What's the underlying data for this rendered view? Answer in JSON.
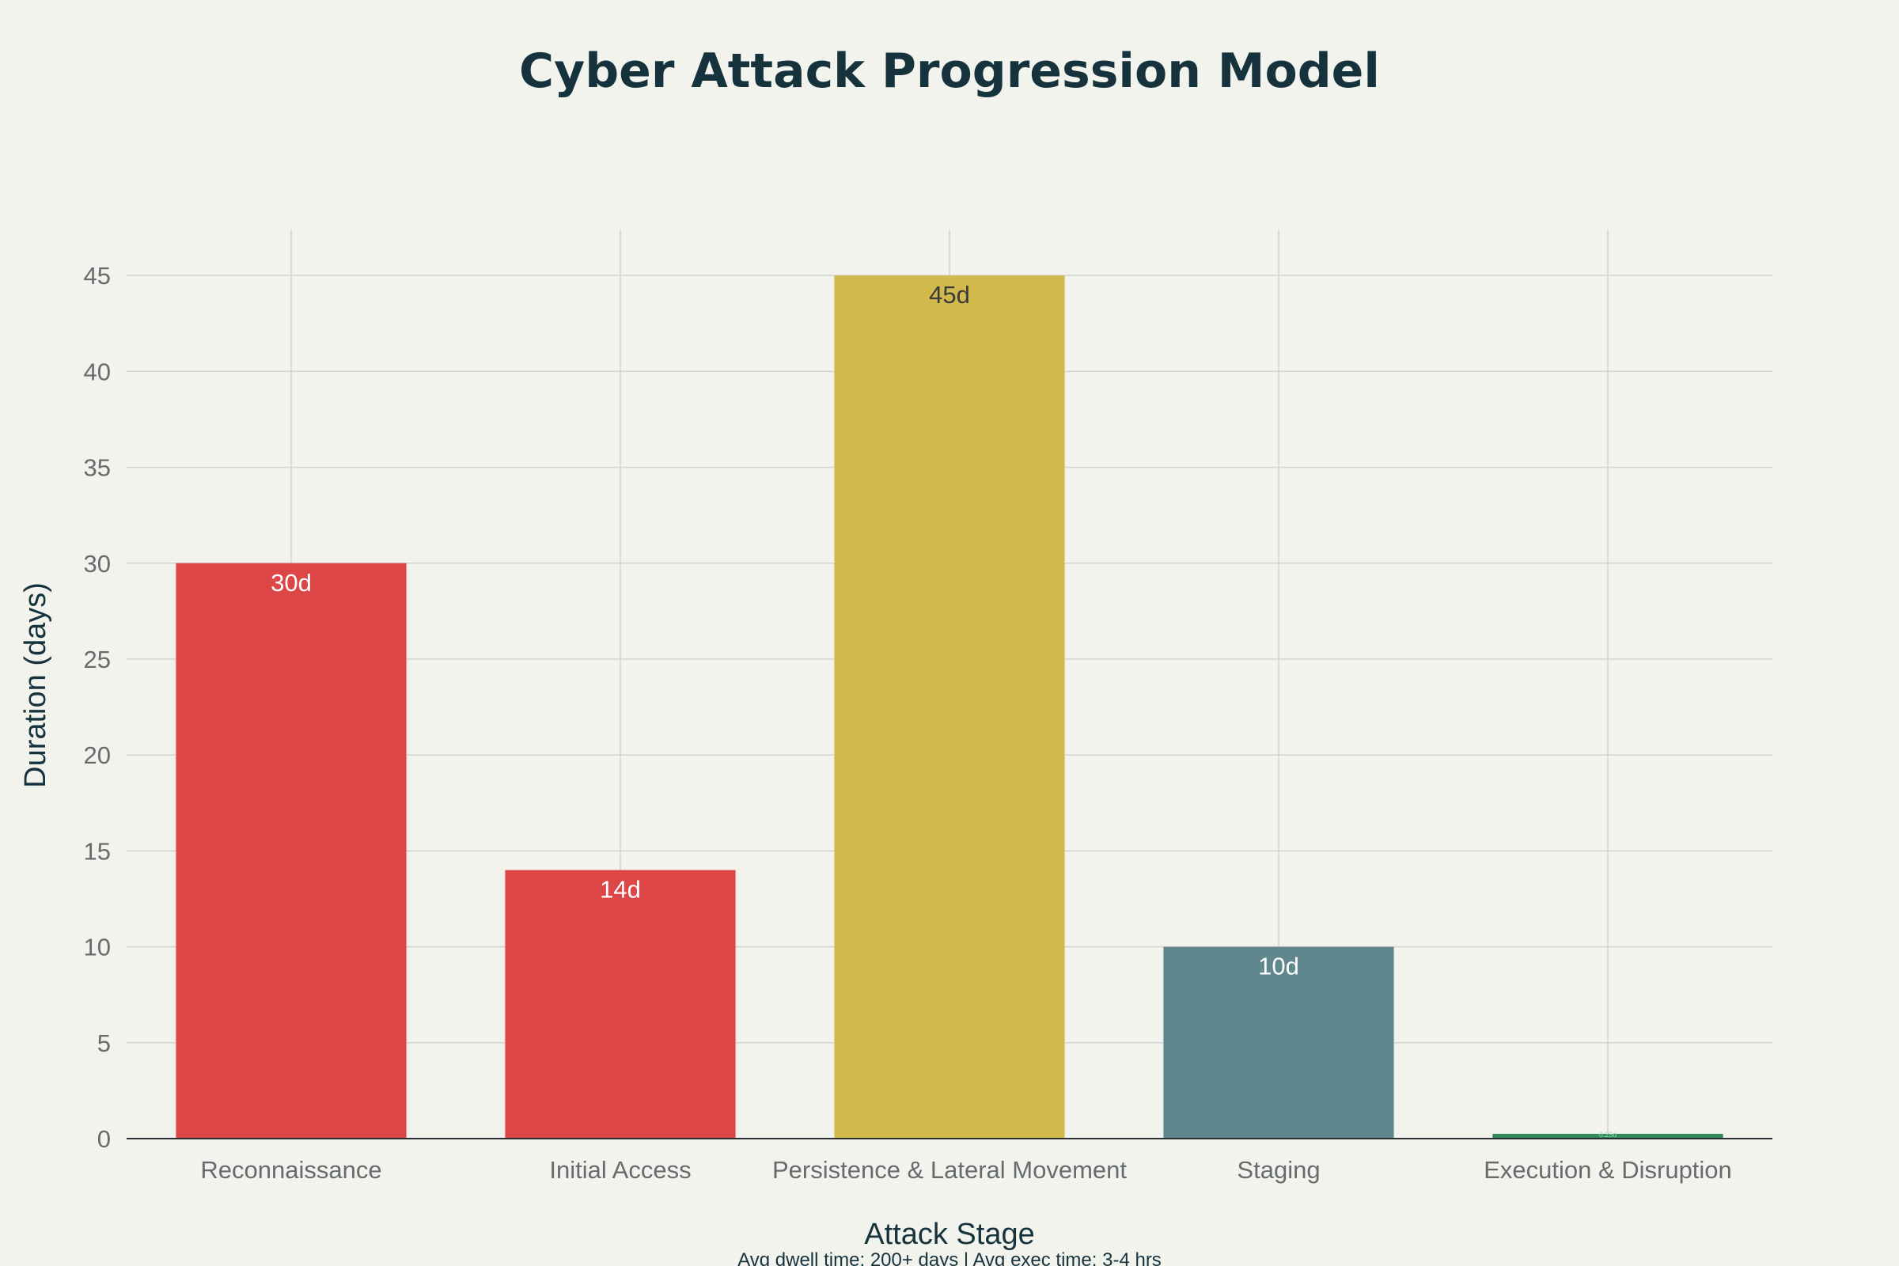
{
  "chart_data": {
    "type": "bar",
    "title": "Cyber Attack Progression Model",
    "xlabel": "Attack Stage",
    "ylabel": "Duration (days)",
    "footnote": "Avg dwell time: 200+ days | Avg exec time: 3-4 hrs",
    "categories": [
      "Reconnaissance",
      "Initial Access",
      "Persistence & Lateral Movement",
      "Staging",
      "Execution & Disruption"
    ],
    "values": [
      30,
      14,
      45,
      10,
      0.25
    ],
    "data_labels": [
      "30d",
      "14d",
      "45d",
      "10d",
      "0.25d"
    ],
    "colors": [
      "#dc4646",
      "#dc4646",
      "#d2b94b",
      "#5f878d",
      "#2e8b57"
    ],
    "label_colors": [
      "#ffffff",
      "#ffffff",
      "#3b3b3b",
      "#ffffff",
      "#9fd8b0"
    ],
    "ylim": [
      0,
      47.4
    ],
    "yticks": [
      0,
      5,
      10,
      15,
      20,
      25,
      30,
      35,
      40,
      45
    ],
    "grid": true,
    "legend": "none"
  }
}
